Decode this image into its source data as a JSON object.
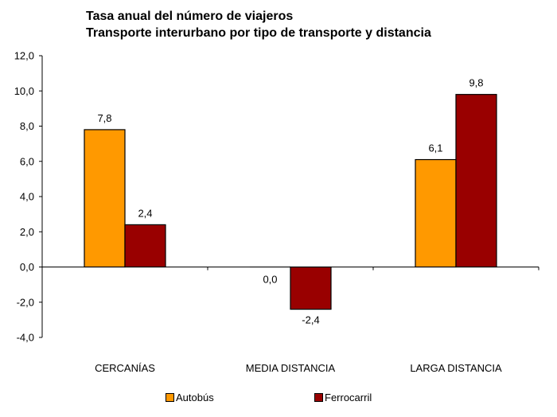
{
  "chart_data": {
    "type": "bar",
    "title": "Tasa anual del número de viajeros",
    "subtitle": "Transporte interurbano por tipo de transporte y distancia",
    "xlabel": "",
    "ylabel": "",
    "categories": [
      "CERCANÍAS",
      "MEDIA DISTANCIA",
      "LARGA DISTANCIA"
    ],
    "series": [
      {
        "name": "Autobús",
        "color": "#FF9900",
        "values": [
          7.8,
          0.0,
          6.1
        ],
        "labels": [
          "7,8",
          "0,0",
          "6,1"
        ]
      },
      {
        "name": "Ferrocarril",
        "color": "#990000",
        "values": [
          2.4,
          -2.4,
          9.8
        ],
        "labels": [
          "2,4",
          "-2,4",
          "9,8"
        ]
      }
    ],
    "ylim": [
      -4,
      12
    ],
    "yticks": [
      12,
      10,
      8,
      6,
      4,
      2,
      0,
      -2,
      -4
    ],
    "ytick_labels": [
      "12,0",
      "10,0",
      "8,0",
      "6,0",
      "4,0",
      "2,0",
      "0,0",
      "-2,0",
      "-4,0"
    ],
    "grid": false,
    "legend_position": "bottom"
  }
}
